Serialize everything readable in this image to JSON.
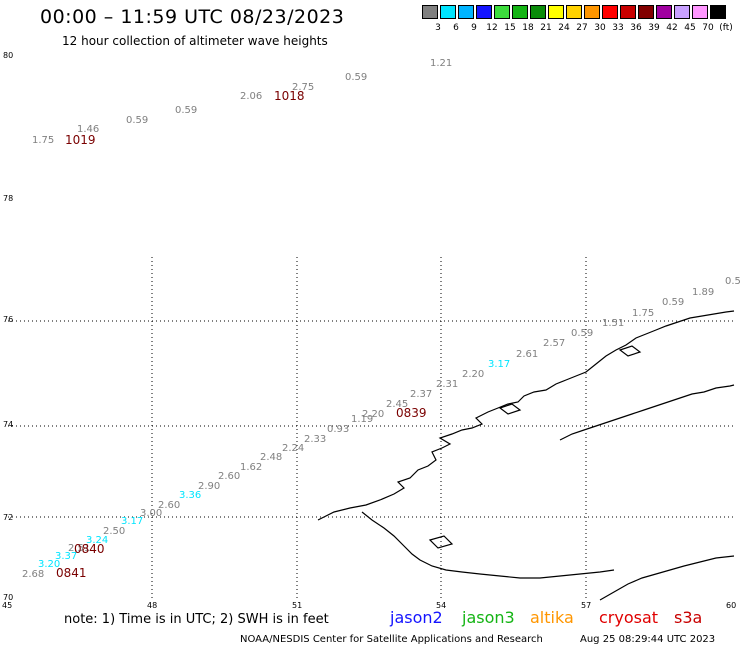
{
  "title": "00:00 – 11:59 UTC 08/23/2023",
  "subtitle": "12 hour collection of altimeter wave heights",
  "legend": {
    "unit": "(ft)",
    "bins": [
      {
        "label": "3",
        "color": "#808080"
      },
      {
        "label": "6",
        "color": "#00e5ff"
      },
      {
        "label": "9",
        "color": "#00b4ff"
      },
      {
        "label": "12",
        "color": "#1414ff"
      },
      {
        "label": "15",
        "color": "#3cdc3c"
      },
      {
        "label": "18",
        "color": "#14b414"
      },
      {
        "label": "21",
        "color": "#0a8c0a"
      },
      {
        "label": "24",
        "color": "#ffff00"
      },
      {
        "label": "27",
        "color": "#ffd200"
      },
      {
        "label": "30",
        "color": "#ff9600"
      },
      {
        "label": "33",
        "color": "#ff0000"
      },
      {
        "label": "36",
        "color": "#c80000"
      },
      {
        "label": "39",
        "color": "#820000"
      },
      {
        "label": "42",
        "color": "#a000a0"
      },
      {
        "label": "45",
        "color": "#c8a0ff"
      },
      {
        "label": "70",
        "color": "#ff96ff"
      },
      {
        "label": "",
        "color": "#000000"
      }
    ]
  },
  "axes": {
    "lon_labels": [
      "45",
      "48",
      "51",
      "54",
      "57",
      "60"
    ],
    "lat_labels": [
      "70",
      "72",
      "74",
      "76",
      "78",
      "80"
    ]
  },
  "observations": [
    {
      "value": "1.75",
      "color": "#808080"
    },
    {
      "value": "1.46",
      "color": "#808080"
    },
    {
      "value": "0.59",
      "color": "#808080"
    },
    {
      "value": "0.59",
      "color": "#808080"
    },
    {
      "value": "2.06",
      "color": "#808080"
    },
    {
      "value": "2.75",
      "color": "#808080"
    },
    {
      "value": "0.59",
      "color": "#808080"
    },
    {
      "value": "1.21",
      "color": "#808080"
    },
    {
      "value": "2.68",
      "color": "#808080"
    },
    {
      "value": "3.20",
      "color": "#00e5ff"
    },
    {
      "value": "3.37",
      "color": "#00e5ff"
    },
    {
      "value": "2.51",
      "color": "#808080"
    },
    {
      "value": "3.24",
      "color": "#00e5ff"
    },
    {
      "value": "2.50",
      "color": "#808080"
    },
    {
      "value": "3.17",
      "color": "#00e5ff"
    },
    {
      "value": "3.00",
      "color": "#808080"
    },
    {
      "value": "2.60",
      "color": "#808080"
    },
    {
      "value": "3.36",
      "color": "#00e5ff"
    },
    {
      "value": "2.90",
      "color": "#808080"
    },
    {
      "value": "2.60",
      "color": "#808080"
    },
    {
      "value": "1.62",
      "color": "#808080"
    },
    {
      "value": "2.48",
      "color": "#808080"
    },
    {
      "value": "2.24",
      "color": "#808080"
    },
    {
      "value": "2.33",
      "color": "#808080"
    },
    {
      "value": "0.93",
      "color": "#808080"
    },
    {
      "value": "1.19",
      "color": "#808080"
    },
    {
      "value": "2.20",
      "color": "#808080"
    },
    {
      "value": "2.45",
      "color": "#808080"
    },
    {
      "value": "2.37",
      "color": "#808080"
    },
    {
      "value": "2.31",
      "color": "#808080"
    },
    {
      "value": "2.20",
      "color": "#808080"
    },
    {
      "value": "3.17",
      "color": "#00e5ff"
    },
    {
      "value": "2.61",
      "color": "#808080"
    },
    {
      "value": "2.57",
      "color": "#808080"
    },
    {
      "value": "0.59",
      "color": "#808080"
    },
    {
      "value": "1.51",
      "color": "#808080"
    },
    {
      "value": "1.75",
      "color": "#808080"
    },
    {
      "value": "0.59",
      "color": "#808080"
    },
    {
      "value": "1.89",
      "color": "#808080"
    },
    {
      "value": "0.5",
      "color": "#808080"
    }
  ],
  "time_labels": [
    "1019",
    "1018",
    "0839",
    "0840",
    "0841"
  ],
  "note": "note:  1) Time is in UTC;  2) SWH is in feet",
  "satellites": [
    {
      "name": "jason2",
      "color": "#1414ff"
    },
    {
      "name": "jason3",
      "color": "#14b414"
    },
    {
      "name": "altika",
      "color": "#ff9600"
    },
    {
      "name": "cryosat",
      "color": "#e00000"
    },
    {
      "name": "s3a",
      "color": "#c80000"
    }
  ],
  "footer_left": "NOAA/NESDIS Center for Satellite Applications and Research",
  "footer_right": "Aug 25 08:29:44 UTC 2023"
}
